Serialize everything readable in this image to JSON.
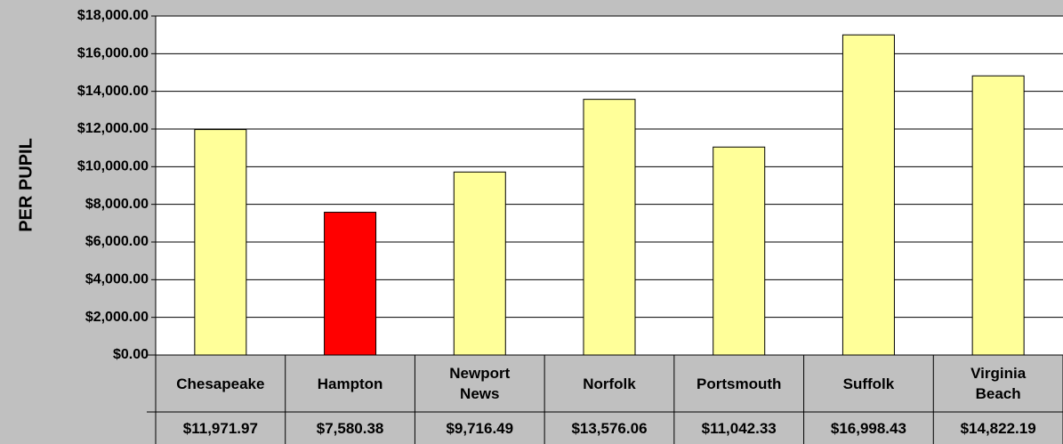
{
  "chart_data": {
    "type": "bar",
    "y_label": "PER PUPIL",
    "categories": [
      "Chesapeake",
      "Hampton",
      "Newport News",
      "Norfolk",
      "Portsmouth",
      "Suffolk",
      "Virginia Beach"
    ],
    "values": [
      11971.97,
      7580.38,
      9716.49,
      13576.06,
      11042.33,
      16998.43,
      14822.19
    ],
    "value_labels": [
      "$11,971.97",
      "$7,580.38",
      "$9,716.49",
      "$13,576.06",
      "$11,042.33",
      "$16,998.43",
      "$14,822.19"
    ],
    "colors": [
      "#ffff99",
      "#ff0000",
      "#ffff99",
      "#ffff99",
      "#ffff99",
      "#ffff99",
      "#ffff99"
    ],
    "ylim": [
      0,
      18000
    ],
    "yticks": [
      {
        "value": 0,
        "label": "$0.00"
      },
      {
        "value": 2000,
        "label": "$2,000.00"
      },
      {
        "value": 4000,
        "label": "$4,000.00"
      },
      {
        "value": 6000,
        "label": "$6,000.00"
      },
      {
        "value": 8000,
        "label": "$8,000.00"
      },
      {
        "value": 10000,
        "label": "$10,000.00"
      },
      {
        "value": 12000,
        "label": "$12,000.00"
      },
      {
        "value": 14000,
        "label": "$14,000.00"
      },
      {
        "value": 16000,
        "label": "$16,000.00"
      },
      {
        "value": 18000,
        "label": "$18,000.00"
      }
    ],
    "grid": true
  }
}
